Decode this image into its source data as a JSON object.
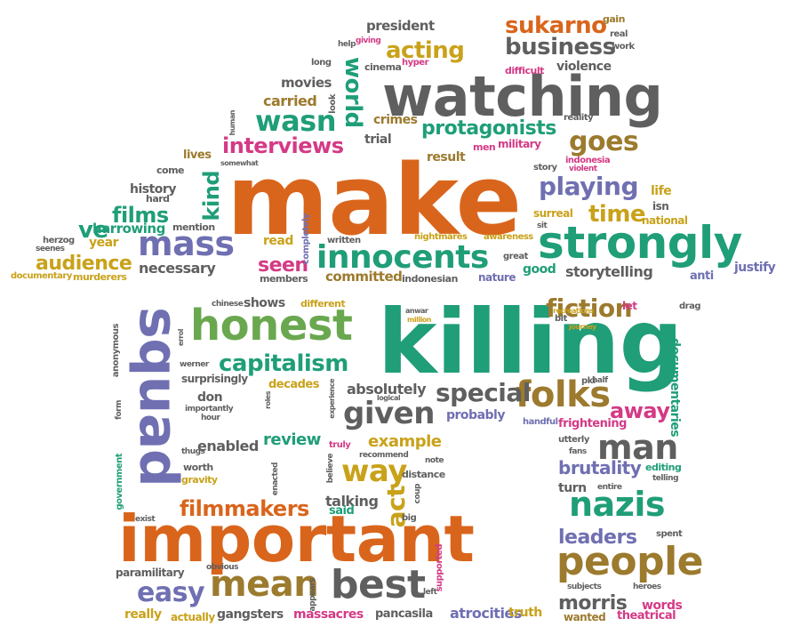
{
  "palette": {
    "orange": "#d9651c",
    "teal": "#1f9e78",
    "gray": "#5f5f5f",
    "purple": "#6f6fb2",
    "gold": "#c9a21a",
    "pink": "#d43a86",
    "brown": "#9c7a2e",
    "green": "#6aa84f"
  },
  "words": [
    {
      "text": "make",
      "color": "orange"
    },
    {
      "text": "killing",
      "color": "teal"
    },
    {
      "text": "important",
      "color": "orange"
    },
    {
      "text": "watching",
      "color": "gray"
    },
    {
      "text": "strongly",
      "color": "teal"
    },
    {
      "text": "squad",
      "color": "purple"
    },
    {
      "text": "honest",
      "color": "green"
    },
    {
      "text": "innocents",
      "color": "teal"
    },
    {
      "text": "mass",
      "color": "purple"
    },
    {
      "text": "people",
      "color": "brown"
    },
    {
      "text": "best",
      "color": "gray"
    },
    {
      "text": "mean",
      "color": "brown"
    },
    {
      "text": "nazis",
      "color": "teal"
    },
    {
      "text": "man",
      "color": "gray"
    },
    {
      "text": "folks",
      "color": "brown"
    },
    {
      "text": "given",
      "color": "gray"
    },
    {
      "text": "capitalism",
      "color": "teal"
    },
    {
      "text": "protagonists",
      "color": "teal"
    },
    {
      "text": "playing",
      "color": "purple"
    },
    {
      "text": "fiction",
      "color": "brown"
    },
    {
      "text": "filmmakers",
      "color": "orange"
    },
    {
      "text": "interviews",
      "color": "pink"
    },
    {
      "text": "goes",
      "color": "brown"
    },
    {
      "text": "wasn",
      "color": "teal"
    },
    {
      "text": "world",
      "color": "teal"
    },
    {
      "text": "acting",
      "color": "gold"
    },
    {
      "text": "business",
      "color": "gray"
    },
    {
      "text": "sukarno",
      "color": "orange"
    },
    {
      "text": "time",
      "color": "gold"
    },
    {
      "text": "easy",
      "color": "purple"
    },
    {
      "text": "way",
      "color": "gold"
    },
    {
      "text": "audience",
      "color": "gold"
    },
    {
      "text": "films",
      "color": "teal"
    },
    {
      "text": "special",
      "color": "gray"
    },
    {
      "text": "leaders",
      "color": "purple"
    },
    {
      "text": "away",
      "color": "pink"
    },
    {
      "text": "act",
      "color": "gold"
    },
    {
      "text": "brutality",
      "color": "purple"
    },
    {
      "text": "kind",
      "color": "teal"
    },
    {
      "text": "ve",
      "color": "teal"
    },
    {
      "text": "morris",
      "color": "gray"
    },
    {
      "text": "review",
      "color": "teal"
    },
    {
      "text": "seen",
      "color": "pink"
    },
    {
      "text": "example",
      "color": "gold"
    },
    {
      "text": "storytelling",
      "color": "gray"
    },
    {
      "text": "absolutely",
      "color": "gray"
    },
    {
      "text": "necessary",
      "color": "gray"
    },
    {
      "text": "committed",
      "color": "brown"
    },
    {
      "text": "harrowing",
      "color": "teal"
    },
    {
      "text": "history",
      "color": "gray"
    },
    {
      "text": "carried",
      "color": "brown"
    },
    {
      "text": "movies",
      "color": "gray"
    },
    {
      "text": "trial",
      "color": "gray"
    },
    {
      "text": "crimes",
      "color": "brown"
    },
    {
      "text": "result",
      "color": "brown"
    },
    {
      "text": "enabled",
      "color": "gray"
    },
    {
      "text": "talking",
      "color": "gray"
    },
    {
      "text": "shows",
      "color": "gray"
    },
    {
      "text": "gangsters",
      "color": "gray"
    },
    {
      "text": "massacres",
      "color": "pink"
    },
    {
      "text": "atrocities",
      "color": "purple"
    },
    {
      "text": "pancasila",
      "color": "gray"
    },
    {
      "text": "really",
      "color": "gold"
    },
    {
      "text": "truth",
      "color": "gold"
    },
    {
      "text": "words",
      "color": "pink"
    },
    {
      "text": "theatrical",
      "color": "pink"
    },
    {
      "text": "wanted",
      "color": "brown"
    },
    {
      "text": "documentaries",
      "color": "teal"
    },
    {
      "text": "violence",
      "color": "gray"
    },
    {
      "text": "probably",
      "color": "purple"
    },
    {
      "text": "frightening",
      "color": "pink"
    },
    {
      "text": "justify",
      "color": "purple"
    },
    {
      "text": "decades",
      "color": "gold"
    },
    {
      "text": "surprisingly",
      "color": "gray"
    },
    {
      "text": "paramilitary",
      "color": "gray"
    },
    {
      "text": "president",
      "color": "gray"
    },
    {
      "text": "read",
      "color": "gold"
    },
    {
      "text": "year",
      "color": "gold"
    },
    {
      "text": "life",
      "color": "gold"
    },
    {
      "text": "turn",
      "color": "gray"
    },
    {
      "text": "good",
      "color": "teal"
    },
    {
      "text": "anti",
      "color": "purple"
    },
    {
      "text": "nature",
      "color": "purple"
    },
    {
      "text": "said",
      "color": "teal"
    },
    {
      "text": "don",
      "color": "gray"
    },
    {
      "text": "lives",
      "color": "brown"
    },
    {
      "text": "come",
      "color": "gray"
    },
    {
      "text": "hard",
      "color": "gray"
    },
    {
      "text": "mention",
      "color": "gray"
    },
    {
      "text": "murderers",
      "color": "gold"
    },
    {
      "text": "documentary",
      "color": "gold"
    },
    {
      "text": "herzog",
      "color": "gray"
    },
    {
      "text": "seenes",
      "color": "gray"
    },
    {
      "text": "national",
      "color": "gold"
    },
    {
      "text": "isn",
      "color": "gray"
    },
    {
      "text": "surreal",
      "color": "gold"
    },
    {
      "text": "awareness",
      "color": "gold"
    },
    {
      "text": "nightmares",
      "color": "gold"
    },
    {
      "text": "great",
      "color": "gray"
    },
    {
      "text": "written",
      "color": "gray"
    },
    {
      "text": "completely",
      "color": "purple"
    },
    {
      "text": "members",
      "color": "gray"
    },
    {
      "text": "indonesian",
      "color": "gray"
    },
    {
      "text": "indonesia",
      "color": "pink"
    },
    {
      "text": "violent",
      "color": "pink"
    },
    {
      "text": "story",
      "color": "gray"
    },
    {
      "text": "reality",
      "color": "gray"
    },
    {
      "text": "military",
      "color": "pink"
    },
    {
      "text": "men",
      "color": "pink"
    },
    {
      "text": "difficult",
      "color": "pink"
    },
    {
      "text": "cinema",
      "color": "gray"
    },
    {
      "text": "hyper",
      "color": "pink"
    },
    {
      "text": "giving",
      "color": "pink"
    },
    {
      "text": "help",
      "color": "gray"
    },
    {
      "text": "long",
      "color": "gray"
    },
    {
      "text": "look",
      "color": "gray"
    },
    {
      "text": "gain",
      "color": "brown"
    },
    {
      "text": "real",
      "color": "gray"
    },
    {
      "text": "work",
      "color": "gray"
    },
    {
      "text": "human",
      "color": "gray"
    },
    {
      "text": "somewhat",
      "color": "gray"
    },
    {
      "text": "sit",
      "color": "gray"
    },
    {
      "text": "chinese",
      "color": "gray"
    },
    {
      "text": "different",
      "color": "gold"
    },
    {
      "text": "anwar",
      "color": "gray"
    },
    {
      "text": "million",
      "color": "gold"
    },
    {
      "text": "let",
      "color": "pink"
    },
    {
      "text": "drag",
      "color": "gray"
    },
    {
      "text": "bit",
      "color": "gray"
    },
    {
      "text": "recreations",
      "color": "gold"
    },
    {
      "text": "journey",
      "color": "gold"
    },
    {
      "text": "anonymous",
      "color": "gray"
    },
    {
      "text": "errol",
      "color": "gray"
    },
    {
      "text": "werner",
      "color": "gray"
    },
    {
      "text": "importantly",
      "color": "gray"
    },
    {
      "text": "hour",
      "color": "gray"
    },
    {
      "text": "roles",
      "color": "gray"
    },
    {
      "text": "experience",
      "color": "gray"
    },
    {
      "text": "logical",
      "color": "gray"
    },
    {
      "text": "pki",
      "color": "gray"
    },
    {
      "text": "half",
      "color": "gray"
    },
    {
      "text": "handful",
      "color": "purple"
    },
    {
      "text": "form",
      "color": "gray"
    },
    {
      "text": "utterly",
      "color": "gray"
    },
    {
      "text": "fans",
      "color": "gray"
    },
    {
      "text": "thugs",
      "color": "gray"
    },
    {
      "text": "truly",
      "color": "pink"
    },
    {
      "text": "recommend",
      "color": "gray"
    },
    {
      "text": "note",
      "color": "gray"
    },
    {
      "text": "editing",
      "color": "teal"
    },
    {
      "text": "telling",
      "color": "gray"
    },
    {
      "text": "worth",
      "color": "gray"
    },
    {
      "text": "gravity",
      "color": "gold"
    },
    {
      "text": "government",
      "color": "teal"
    },
    {
      "text": "enacted",
      "color": "gray"
    },
    {
      "text": "believe",
      "color": "gray"
    },
    {
      "text": "distance",
      "color": "gray"
    },
    {
      "text": "coup",
      "color": "gray"
    },
    {
      "text": "entire",
      "color": "gray"
    },
    {
      "text": "exist",
      "color": "gray"
    },
    {
      "text": "big",
      "color": "gray"
    },
    {
      "text": "spent",
      "color": "gray"
    },
    {
      "text": "obvious",
      "color": "gray"
    },
    {
      "text": "supported",
      "color": "pink"
    },
    {
      "text": "appears",
      "color": "gray"
    },
    {
      "text": "left",
      "color": "gray"
    },
    {
      "text": "subjects",
      "color": "gray"
    },
    {
      "text": "heroes",
      "color": "gray"
    },
    {
      "text": "actually",
      "color": "gold"
    }
  ]
}
